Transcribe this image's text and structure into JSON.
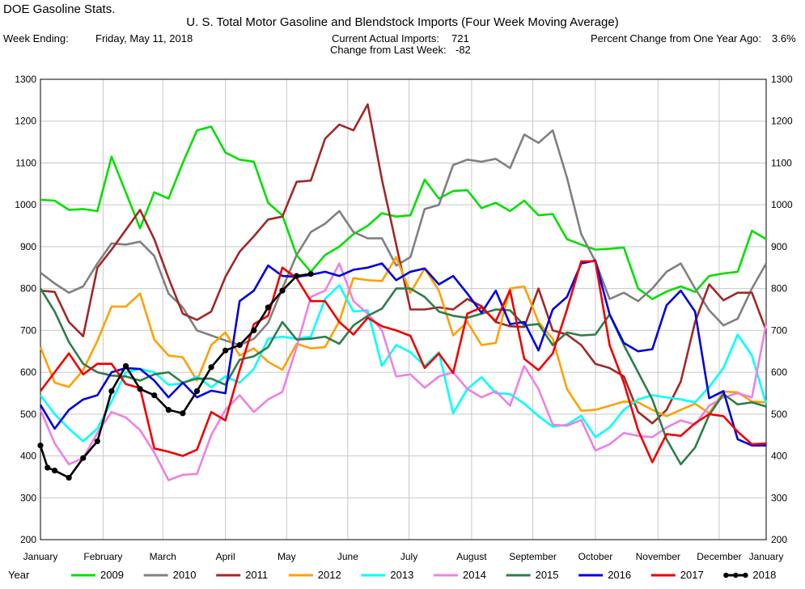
{
  "header": {
    "app_title": "DOE Gasoline Stats.",
    "chart_title": "U. S. Total Motor Gasoline and Blendstock Imports (Four Week Moving Average)",
    "week_ending_label": "Week Ending:",
    "week_ending_value": "Friday, May 11, 2018",
    "current_imports_label": "Current Actual Imports:",
    "current_imports_value": "721",
    "change_label": "Change from Last Week:",
    "change_value": "-82",
    "pct_change_label": "Percent Change from One Year Ago:",
    "pct_change_value": "3.6%"
  },
  "chart_data": {
    "type": "line",
    "title": "U. S. Total Motor Gasoline and Blendstock Imports (Four Week Moving Average)",
    "x_unit": "week of year",
    "xlim": [
      1,
      52
    ],
    "ylim": [
      200,
      1300
    ],
    "y_ticks": [
      200,
      300,
      400,
      500,
      600,
      700,
      800,
      900,
      1000,
      1100,
      1200,
      1300
    ],
    "y_tick_labels": [
      "200",
      "300",
      "400",
      "500",
      "600",
      "700",
      "800",
      "900",
      "1000",
      "1100",
      "1200",
      "1300"
    ],
    "month_labels": [
      "January",
      "February",
      "March",
      "April",
      "May",
      "June",
      "July",
      "August",
      "September",
      "October",
      "November",
      "December",
      "January"
    ],
    "month_weeks": [
      1,
      5.4,
      9.6,
      14,
      18.3,
      22.6,
      26.9,
      31.3,
      35.6,
      40,
      44.4,
      48.7,
      53
    ],
    "legend_title": "Year",
    "legend_position": "bottom",
    "grid": true,
    "series": [
      {
        "name": "2009",
        "color": "#00e000",
        "marker": false,
        "x": [
          1,
          2,
          3,
          4,
          5,
          6,
          7,
          8,
          9,
          10,
          11,
          12,
          13,
          14,
          15,
          16,
          17,
          18,
          19,
          20,
          21,
          22,
          23,
          24,
          25,
          26,
          27,
          28,
          29,
          30,
          31,
          32,
          33,
          34,
          35,
          36,
          37,
          38,
          39,
          40,
          41,
          42,
          43,
          44,
          45,
          46,
          47,
          48,
          49,
          50,
          51,
          52
        ],
        "y": [
          1012,
          1010,
          988,
          990,
          985,
          1115,
          1030,
          944,
          1030,
          1015,
          1100,
          1178,
          1187,
          1125,
          1108,
          1103,
          1005,
          975,
          880,
          840,
          880,
          900,
          930,
          950,
          980,
          972,
          975,
          1060,
          1015,
          1033,
          1035,
          992,
          1005,
          985,
          1010,
          975,
          978,
          918,
          905,
          893,
          895,
          898,
          800,
          775,
          793,
          805,
          792,
          830,
          836,
          840,
          938,
          918
        ]
      },
      {
        "name": "2010",
        "color": "#808080",
        "marker": false,
        "x": [
          1,
          2,
          3,
          4,
          5,
          6,
          7,
          8,
          9,
          10,
          11,
          12,
          13,
          14,
          15,
          16,
          17,
          18,
          19,
          20,
          21,
          22,
          23,
          24,
          25,
          26,
          27,
          28,
          29,
          30,
          31,
          32,
          33,
          34,
          35,
          36,
          37,
          38,
          39,
          40,
          41,
          42,
          43,
          44,
          45,
          46,
          47,
          48,
          49,
          50,
          51,
          52
        ],
        "y": [
          838,
          812,
          790,
          805,
          860,
          908,
          905,
          912,
          878,
          788,
          755,
          700,
          688,
          676,
          665,
          680,
          718,
          800,
          880,
          935,
          955,
          985,
          935,
          920,
          920,
          855,
          875,
          990,
          1000,
          1095,
          1108,
          1103,
          1110,
          1088,
          1168,
          1148,
          1178,
          1065,
          930,
          865,
          775,
          790,
          770,
          800,
          840,
          860,
          800,
          748,
          712,
          728,
          800,
          860
        ]
      },
      {
        "name": "2011",
        "color": "#a02828",
        "marker": false,
        "x": [
          1,
          2,
          3,
          4,
          5,
          6,
          7,
          8,
          9,
          10,
          11,
          12,
          13,
          14,
          15,
          16,
          17,
          18,
          19,
          20,
          21,
          22,
          23,
          24,
          25,
          26,
          27,
          28,
          29,
          30,
          31,
          32,
          33,
          34,
          35,
          36,
          37,
          38,
          39,
          40,
          41,
          42,
          43,
          44,
          45,
          46,
          47,
          48,
          49,
          50,
          51,
          52
        ],
        "y": [
          795,
          792,
          720,
          686,
          850,
          893,
          940,
          988,
          918,
          825,
          740,
          725,
          745,
          828,
          888,
          925,
          965,
          972,
          1055,
          1058,
          1158,
          1192,
          1178,
          1240,
          1060,
          905,
          750,
          750,
          755,
          750,
          775,
          758,
          720,
          710,
          708,
          800,
          700,
          690,
          665,
          620,
          610,
          590,
          505,
          478,
          510,
          578,
          720,
          810,
          772,
          790,
          790,
          700
        ]
      },
      {
        "name": "2012",
        "color": "#ffa000",
        "marker": false,
        "x": [
          1,
          2,
          3,
          4,
          5,
          6,
          7,
          8,
          9,
          10,
          11,
          12,
          13,
          14,
          15,
          16,
          17,
          18,
          19,
          20,
          21,
          22,
          23,
          24,
          25,
          26,
          27,
          28,
          29,
          30,
          31,
          32,
          33,
          34,
          35,
          36,
          37,
          38,
          39,
          40,
          41,
          42,
          43,
          44,
          45,
          46,
          47,
          48,
          49,
          50,
          51,
          52
        ],
        "y": [
          660,
          575,
          565,
          605,
          675,
          757,
          757,
          788,
          678,
          640,
          636,
          580,
          665,
          695,
          640,
          657,
          625,
          606,
          668,
          657,
          660,
          722,
          825,
          820,
          818,
          875,
          790,
          848,
          795,
          688,
          720,
          665,
          670,
          800,
          805,
          720,
          680,
          560,
          508,
          510,
          520,
          530,
          528,
          510,
          495,
          510,
          525,
          502,
          554,
          552,
          530,
          528
        ]
      },
      {
        "name": "2013",
        "color": "#00ffff",
        "marker": false,
        "x": [
          1,
          2,
          3,
          4,
          5,
          6,
          7,
          8,
          9,
          10,
          11,
          12,
          13,
          14,
          15,
          16,
          17,
          18,
          19,
          20,
          21,
          22,
          23,
          24,
          25,
          26,
          27,
          28,
          29,
          30,
          31,
          32,
          33,
          34,
          35,
          36,
          37,
          38,
          39,
          40,
          41,
          42,
          43,
          44,
          45,
          46,
          47,
          48,
          49,
          50,
          51,
          52
        ],
        "y": [
          545,
          500,
          465,
          435,
          465,
          530,
          600,
          608,
          600,
          570,
          573,
          590,
          564,
          590,
          575,
          608,
          680,
          685,
          680,
          685,
          775,
          808,
          745,
          748,
          615,
          665,
          648,
          615,
          648,
          502,
          560,
          588,
          550,
          548,
          525,
          495,
          470,
          475,
          496,
          445,
          468,
          510,
          535,
          545,
          540,
          535,
          528,
          565,
          610,
          690,
          640,
          525
        ]
      },
      {
        "name": "2014",
        "color": "#ee80e6",
        "marker": false,
        "x": [
          1,
          2,
          3,
          4,
          5,
          6,
          7,
          8,
          9,
          10,
          11,
          12,
          13,
          14,
          15,
          16,
          17,
          18,
          19,
          20,
          21,
          22,
          23,
          24,
          25,
          26,
          27,
          28,
          29,
          30,
          31,
          32,
          33,
          34,
          35,
          36,
          37,
          38,
          39,
          40,
          41,
          42,
          43,
          44,
          45,
          46,
          47,
          48,
          49,
          50,
          51,
          52
        ],
        "y": [
          510,
          430,
          380,
          395,
          455,
          505,
          492,
          462,
          408,
          342,
          355,
          357,
          450,
          510,
          545,
          505,
          535,
          553,
          660,
          780,
          795,
          860,
          770,
          740,
          700,
          590,
          595,
          563,
          590,
          600,
          560,
          540,
          555,
          520,
          615,
          560,
          475,
          472,
          486,
          413,
          428,
          455,
          448,
          445,
          468,
          485,
          475,
          520,
          540,
          550,
          540,
          715
        ]
      },
      {
        "name": "2015",
        "color": "#2e7d4a",
        "marker": false,
        "x": [
          1,
          2,
          3,
          4,
          5,
          6,
          7,
          8,
          9,
          10,
          11,
          12,
          13,
          14,
          15,
          16,
          17,
          18,
          19,
          20,
          21,
          22,
          23,
          24,
          25,
          26,
          27,
          28,
          29,
          30,
          31,
          32,
          33,
          34,
          35,
          36,
          37,
          38,
          39,
          40,
          41,
          42,
          43,
          44,
          45,
          46,
          47,
          48,
          49,
          50,
          51,
          52
        ],
        "y": [
          800,
          745,
          672,
          620,
          600,
          592,
          590,
          580,
          595,
          600,
          575,
          585,
          585,
          570,
          630,
          638,
          660,
          720,
          678,
          680,
          685,
          668,
          712,
          735,
          752,
          800,
          800,
          780,
          745,
          735,
          730,
          740,
          750,
          748,
          712,
          715,
          665,
          695,
          688,
          690,
          738,
          665,
          600,
          535,
          440,
          380,
          420,
          498,
          548,
          523,
          528,
          518
        ]
      },
      {
        "name": "2016",
        "color": "#0000e0",
        "marker": false,
        "x": [
          1,
          2,
          3,
          4,
          5,
          6,
          7,
          8,
          9,
          10,
          11,
          12,
          13,
          14,
          15,
          16,
          17,
          18,
          19,
          20,
          21,
          22,
          23,
          24,
          25,
          26,
          27,
          28,
          29,
          30,
          31,
          32,
          33,
          34,
          35,
          36,
          37,
          38,
          39,
          40,
          41,
          42,
          43,
          44,
          45,
          46,
          47,
          48,
          49,
          50,
          51,
          52
        ],
        "y": [
          522,
          465,
          510,
          535,
          545,
          600,
          610,
          608,
          580,
          540,
          575,
          540,
          556,
          550,
          770,
          795,
          855,
          830,
          828,
          833,
          840,
          830,
          845,
          850,
          860,
          820,
          840,
          848,
          810,
          830,
          788,
          742,
          795,
          715,
          720,
          652,
          750,
          780,
          860,
          867,
          738,
          670,
          650,
          655,
          760,
          795,
          745,
          538,
          555,
          440,
          425,
          425
        ]
      },
      {
        "name": "2017",
        "color": "#ee0000",
        "marker": false,
        "x": [
          1,
          2,
          3,
          4,
          5,
          6,
          7,
          8,
          9,
          10,
          11,
          12,
          13,
          14,
          15,
          16,
          17,
          18,
          19,
          20,
          21,
          22,
          23,
          24,
          25,
          26,
          27,
          28,
          29,
          30,
          31,
          32,
          33,
          34,
          35,
          36,
          37,
          38,
          39,
          40,
          41,
          42,
          43,
          44,
          45,
          46,
          47,
          48,
          49,
          50,
          51,
          52
        ],
        "y": [
          555,
          600,
          645,
          595,
          620,
          620,
          572,
          562,
          418,
          410,
          400,
          415,
          505,
          485,
          605,
          715,
          735,
          850,
          825,
          770,
          770,
          720,
          690,
          730,
          710,
          700,
          687,
          610,
          645,
          598,
          740,
          755,
          722,
          796,
          632,
          605,
          645,
          750,
          865,
          865,
          665,
          575,
          462,
          385,
          452,
          448,
          478,
          500,
          495,
          458,
          428,
          430
        ]
      },
      {
        "name": "2018",
        "color": "#000000",
        "marker": true,
        "x": [
          1,
          1.5,
          2,
          3,
          4,
          5,
          6,
          7,
          8,
          9,
          10,
          11,
          12,
          13,
          14,
          15,
          16,
          17,
          18,
          19,
          20
        ],
        "y": [
          425,
          372,
          365,
          348,
          395,
          435,
          555,
          615,
          560,
          545,
          510,
          502,
          555,
          612,
          652,
          665,
          700,
          755,
          795,
          830,
          835
        ]
      }
    ]
  }
}
